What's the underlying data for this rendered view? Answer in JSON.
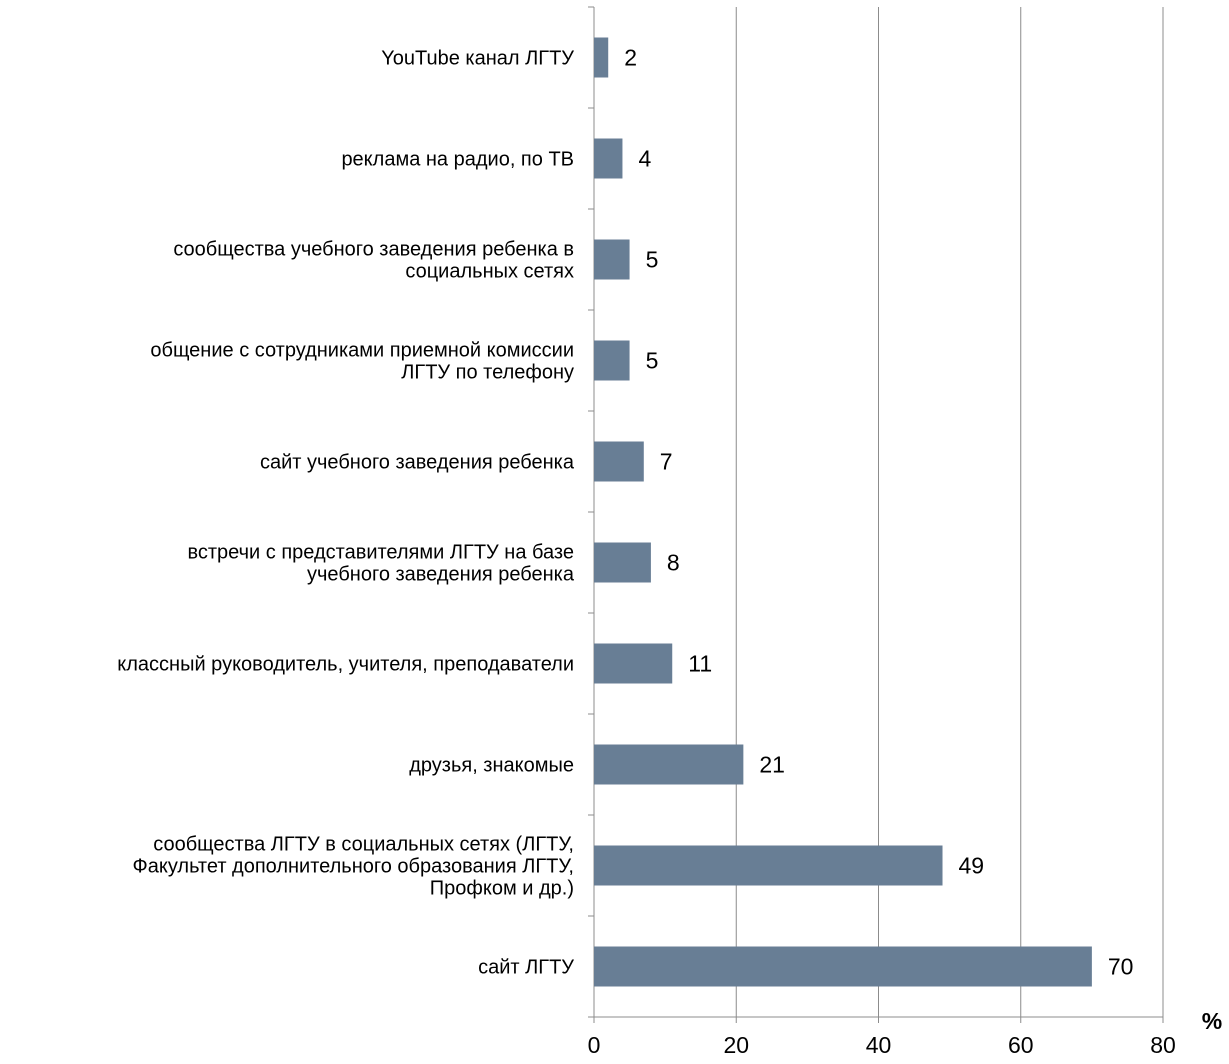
{
  "chart_data": {
    "type": "bar",
    "orientation": "horizontal",
    "categories": [
      "YouTube канал ЛГТУ",
      "реклама на радио, по ТВ",
      "сообщества учебного заведения ребенка в социальных сетях",
      "общение с сотрудниками приемной комиссии ЛГТУ по телефону",
      "сайт учебного заведения ребенка",
      "встречи с представителями ЛГТУ на базе учебного заведения ребенка",
      "классный руководитель, учителя, преподаватели",
      "друзья, знакомые",
      "сообщества ЛГТУ в социальных сетях (ЛГТУ, Факультет дополнительного образования ЛГТУ, Профком и др.)",
      "сайт ЛГТУ"
    ],
    "category_lines": [
      [
        "YouTube канал ЛГТУ"
      ],
      [
        "реклама на радио, по ТВ"
      ],
      [
        "сообщества учебного заведения ребенка в",
        "социальных сетях"
      ],
      [
        "общение с сотрудниками приемной комиссии",
        "ЛГТУ по телефону"
      ],
      [
        "сайт учебного заведения ребенка"
      ],
      [
        "встречи с представителями ЛГТУ на базе",
        "учебного заведения ребенка"
      ],
      [
        "классный руководитель, учителя, преподаватели"
      ],
      [
        "друзья, знакомые"
      ],
      [
        "сообщества ЛГТУ в социальных сетях (ЛГТУ,",
        "Факультет дополнительного образования ЛГТУ,",
        "Профком и др.)"
      ],
      [
        "сайт ЛГТУ"
      ]
    ],
    "values": [
      2,
      4,
      5,
      5,
      7,
      8,
      11,
      21,
      49,
      70
    ],
    "value_labels": [
      "2",
      "4",
      "5",
      "5",
      "7",
      "8",
      "11",
      "21",
      "49",
      "70"
    ],
    "xlim": [
      0,
      80
    ],
    "x_ticks": [
      0,
      20,
      40,
      60,
      80
    ],
    "x_tick_labels": [
      "0",
      "20",
      "40",
      "60",
      "80"
    ],
    "x_unit": "%",
    "title": "",
    "xlabel": "",
    "ylabel": "",
    "grid": "vertical",
    "legend": "none",
    "bar_color": "#687e95",
    "grid_color": "#8c8c8c",
    "axis_color": "#8c8c8c"
  }
}
